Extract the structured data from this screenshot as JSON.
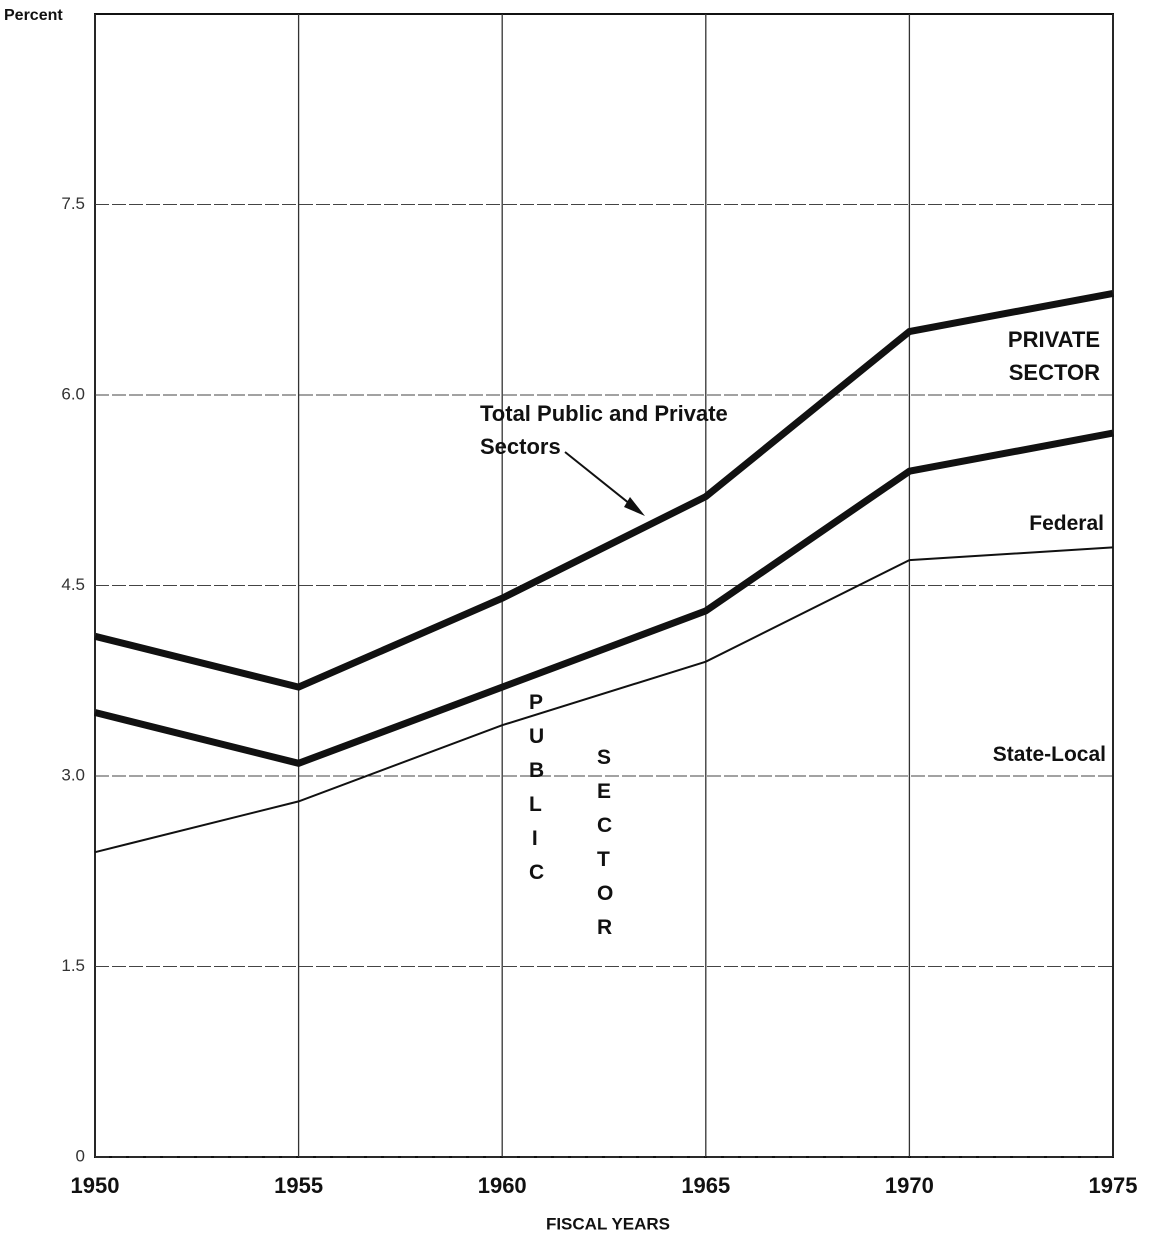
{
  "chart_data": {
    "type": "line",
    "y_label": "Percent",
    "x_label": "FISCAL YEARS",
    "x": [
      1950,
      1955,
      1960,
      1965,
      1970,
      1975
    ],
    "xlim": [
      1950,
      1975
    ],
    "xticks": [
      1950,
      1955,
      1960,
      1965,
      1970,
      1975
    ],
    "ylim": [
      0,
      9
    ],
    "yticks": [
      0,
      1.5,
      {
        "value": 3,
        "label": "3.0"
      },
      4.5,
      {
        "value": 6,
        "label": "6.0"
      },
      7.5
    ],
    "grid": true,
    "series": [
      {
        "name": "Total Public and Private Sectors",
        "color": "#111111",
        "line_width": 7,
        "values": [
          4.1,
          3.7,
          4.4,
          5.2,
          6.5,
          6.8
        ]
      },
      {
        "name": "Federal",
        "color": "#111111",
        "line_width": 7,
        "values": [
          3.5,
          3.1,
          3.7,
          4.3,
          5.4,
          5.7
        ]
      },
      {
        "name": "State-Local",
        "color": "#111111",
        "line_width": 2,
        "values": [
          2.4,
          2.8,
          3.4,
          3.9,
          4.7,
          4.8
        ]
      }
    ],
    "annotations": [
      "PRIVATE SECTOR",
      "PUBLIC",
      "SECTOR"
    ]
  }
}
